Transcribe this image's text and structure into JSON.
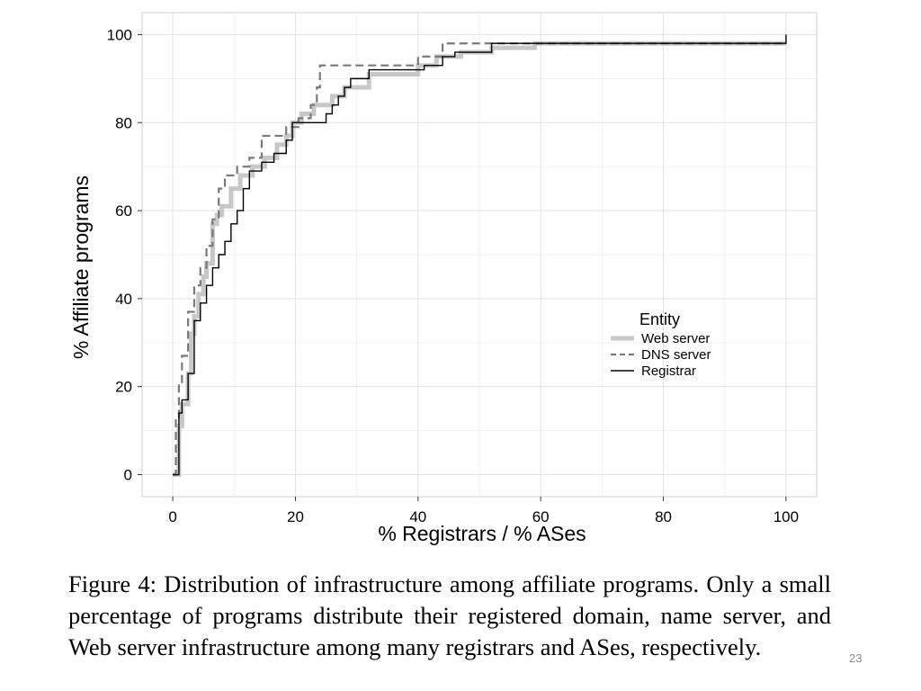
{
  "chart_data": {
    "type": "line",
    "step": true,
    "xlabel": "% Registrars / % ASes",
    "ylabel": "% Affiliate programs",
    "xlim": [
      -5,
      105
    ],
    "ylim": [
      -5,
      105
    ],
    "xticks": [
      "0",
      "20",
      "40",
      "60",
      "80",
      "100"
    ],
    "yticks": [
      "0",
      "20",
      "40",
      "60",
      "80",
      "100"
    ],
    "grid": true,
    "legend": {
      "title": "Entity",
      "placement": "right-center"
    },
    "series": [
      {
        "name": "Web server",
        "style": "thick-light",
        "color": "#c8c8c8",
        "x": [
          0,
          1,
          1.5,
          2.5,
          3,
          3.5,
          4.2,
          5,
          5.5,
          6.5,
          7.2,
          8,
          9.5,
          11,
          13,
          15,
          17,
          18.5,
          19.5,
          21,
          23,
          26,
          28,
          32,
          40,
          43,
          47,
          52,
          59,
          100
        ],
        "y": [
          0,
          11,
          16,
          23,
          32,
          36,
          41,
          45,
          48,
          57,
          59,
          61,
          65,
          68,
          70,
          72,
          75,
          77,
          80,
          82,
          84,
          86,
          88,
          91,
          93,
          95,
          96,
          97,
          98,
          98
        ]
      },
      {
        "name": "DNS server",
        "style": "dashed",
        "color": "#7a7a7a",
        "x": [
          0,
          0.5,
          1,
          1.5,
          2.5,
          3.5,
          4.5,
          5.5,
          6.5,
          7.5,
          8.5,
          10.5,
          12.5,
          14.5,
          18.5,
          20.5,
          22.5,
          23.5,
          24,
          40,
          44,
          100
        ],
        "y": [
          0,
          13,
          21,
          27,
          37,
          43,
          47,
          52,
          58,
          65,
          68,
          70,
          72,
          77,
          79,
          81,
          84,
          88,
          93,
          95,
          98,
          98
        ]
      },
      {
        "name": "Registrar",
        "style": "solid-thin",
        "color": "#000000",
        "x": [
          0,
          1,
          1.5,
          2.5,
          3.5,
          4.5,
          5.5,
          6.5,
          7.5,
          8.5,
          9.5,
          10.5,
          11.5,
          12.5,
          14.5,
          16.5,
          18.5,
          19.5,
          25,
          26,
          27,
          28,
          29,
          32,
          41,
          44,
          46,
          52,
          100
        ],
        "y": [
          0,
          14,
          17,
          23,
          35,
          39,
          43,
          47,
          50,
          53,
          57,
          60,
          65,
          69,
          71,
          73,
          76,
          80,
          82,
          84,
          86,
          88,
          90,
          92,
          93,
          95,
          96,
          98,
          100
        ]
      }
    ]
  },
  "caption": "Figure 4: Distribution of infrastructure among affiliate programs. Only a small percentage of programs distribute their registered domain, name server, and Web server infrastructure among many registrars and ASes, respectively.",
  "page_number": "23"
}
